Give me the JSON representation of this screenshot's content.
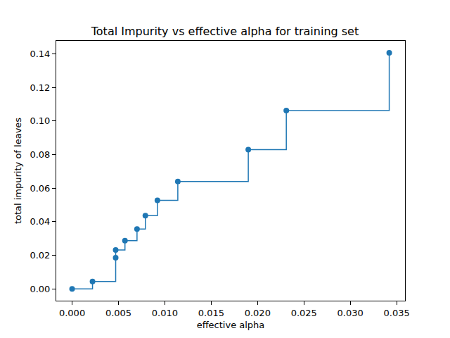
{
  "chart_data": {
    "type": "line",
    "title": "Total Impurity vs effective alpha for training set",
    "x_label": "effective alpha",
    "y_label": "total impurity of leaves",
    "x": [
      0.0,
      0.0022,
      0.0047,
      0.0047,
      0.0057,
      0.007,
      0.0079,
      0.0092,
      0.0114,
      0.019,
      0.0231,
      0.0342
    ],
    "values": [
      0.0,
      0.0044,
      0.0186,
      0.0232,
      0.0287,
      0.0357,
      0.0436,
      0.0528,
      0.064,
      0.083,
      0.1063,
      0.1407
    ],
    "color": "#1f77b4",
    "marker": "circle",
    "line_style": "steps",
    "grid": false,
    "xlim": [
      -0.00171,
      0.0359
    ],
    "xticks": [
      {
        "value": 0.0,
        "label": "0.000"
      },
      {
        "value": 0.005,
        "label": "0.005"
      },
      {
        "value": 0.01,
        "label": "0.010"
      },
      {
        "value": 0.015,
        "label": "0.015"
      },
      {
        "value": 0.02,
        "label": "0.020"
      },
      {
        "value": 0.025,
        "label": "0.025"
      },
      {
        "value": 0.03,
        "label": "0.030"
      },
      {
        "value": 0.035,
        "label": "0.035"
      }
    ],
    "ylim": [
      -0.00704,
      0.1478
    ],
    "yticks": [
      {
        "value": 0.0,
        "label": "0.00"
      },
      {
        "value": 0.02,
        "label": "0.02"
      },
      {
        "value": 0.04,
        "label": "0.04"
      },
      {
        "value": 0.06,
        "label": "0.06"
      },
      {
        "value": 0.08,
        "label": "0.08"
      },
      {
        "value": 0.1,
        "label": "0.10"
      },
      {
        "value": 0.12,
        "label": "0.12"
      },
      {
        "value": 0.14,
        "label": "0.14"
      }
    ]
  }
}
